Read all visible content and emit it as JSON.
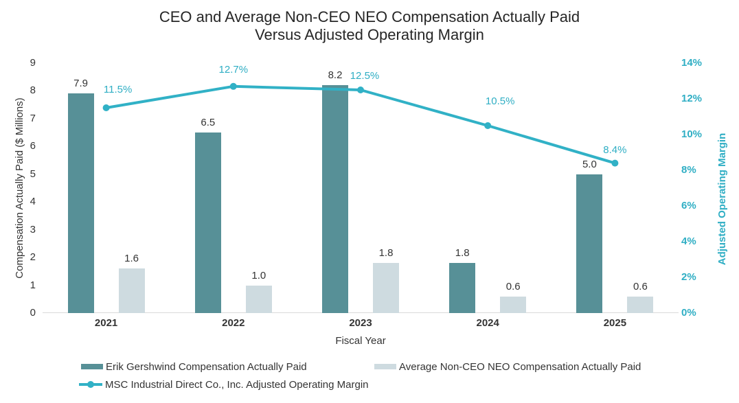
{
  "chart_data": {
    "type": "bar-line-combo",
    "title": "CEO and Average Non-CEO NEO Compensation Actually Paid\nVersus Adjusted Operating Margin",
    "categories": [
      "2021",
      "2022",
      "2023",
      "2024",
      "2025"
    ],
    "series": [
      {
        "name": "Erik Gershwind Compensation Actually Paid",
        "type": "bar",
        "axis": "left",
        "color": "#579097",
        "values": [
          7.9,
          6.5,
          8.2,
          1.8,
          5.0
        ],
        "labels": [
          "7.9",
          "6.5",
          "8.2",
          "1.8",
          "5.0"
        ]
      },
      {
        "name": "Average Non-CEO NEO Compensation Actually Paid",
        "type": "bar",
        "axis": "left",
        "color": "#CEDBE0",
        "values": [
          1.6,
          1.0,
          1.8,
          0.6,
          0.6
        ],
        "labels": [
          "1.6",
          "1.0",
          "1.8",
          "0.6",
          "0.6"
        ]
      },
      {
        "name": "MSC Industrial Direct Co., Inc. Adjusted Operating Margin",
        "type": "line",
        "axis": "right",
        "color": "#31B1C6",
        "values": [
          11.5,
          12.7,
          12.5,
          10.5,
          8.4
        ],
        "labels": [
          "11.5%",
          "12.7%",
          "12.5%",
          "10.5%",
          "8.4%"
        ]
      }
    ],
    "left_axis": {
      "title": "Compensation Actually Paid ($ Millions)",
      "min": 0,
      "max": 9,
      "ticks": [
        "0",
        "1",
        "2",
        "3",
        "4",
        "5",
        "6",
        "7",
        "8",
        "9"
      ]
    },
    "right_axis": {
      "title": "Adjusted Operating Margin",
      "min": 0,
      "max": 14,
      "ticks": [
        "0%",
        "2%",
        "4%",
        "6%",
        "8%",
        "10%",
        "12%",
        "14%"
      ],
      "color": "#2FAEC4"
    },
    "x_axis": {
      "title": "Fiscal Year"
    },
    "legend_position": "bottom",
    "grid": false,
    "colors": {
      "axis_line": "#D9D9D9",
      "title_text": "#262626",
      "body_text": "#333333",
      "teal_text": "#2FAEC4"
    }
  }
}
